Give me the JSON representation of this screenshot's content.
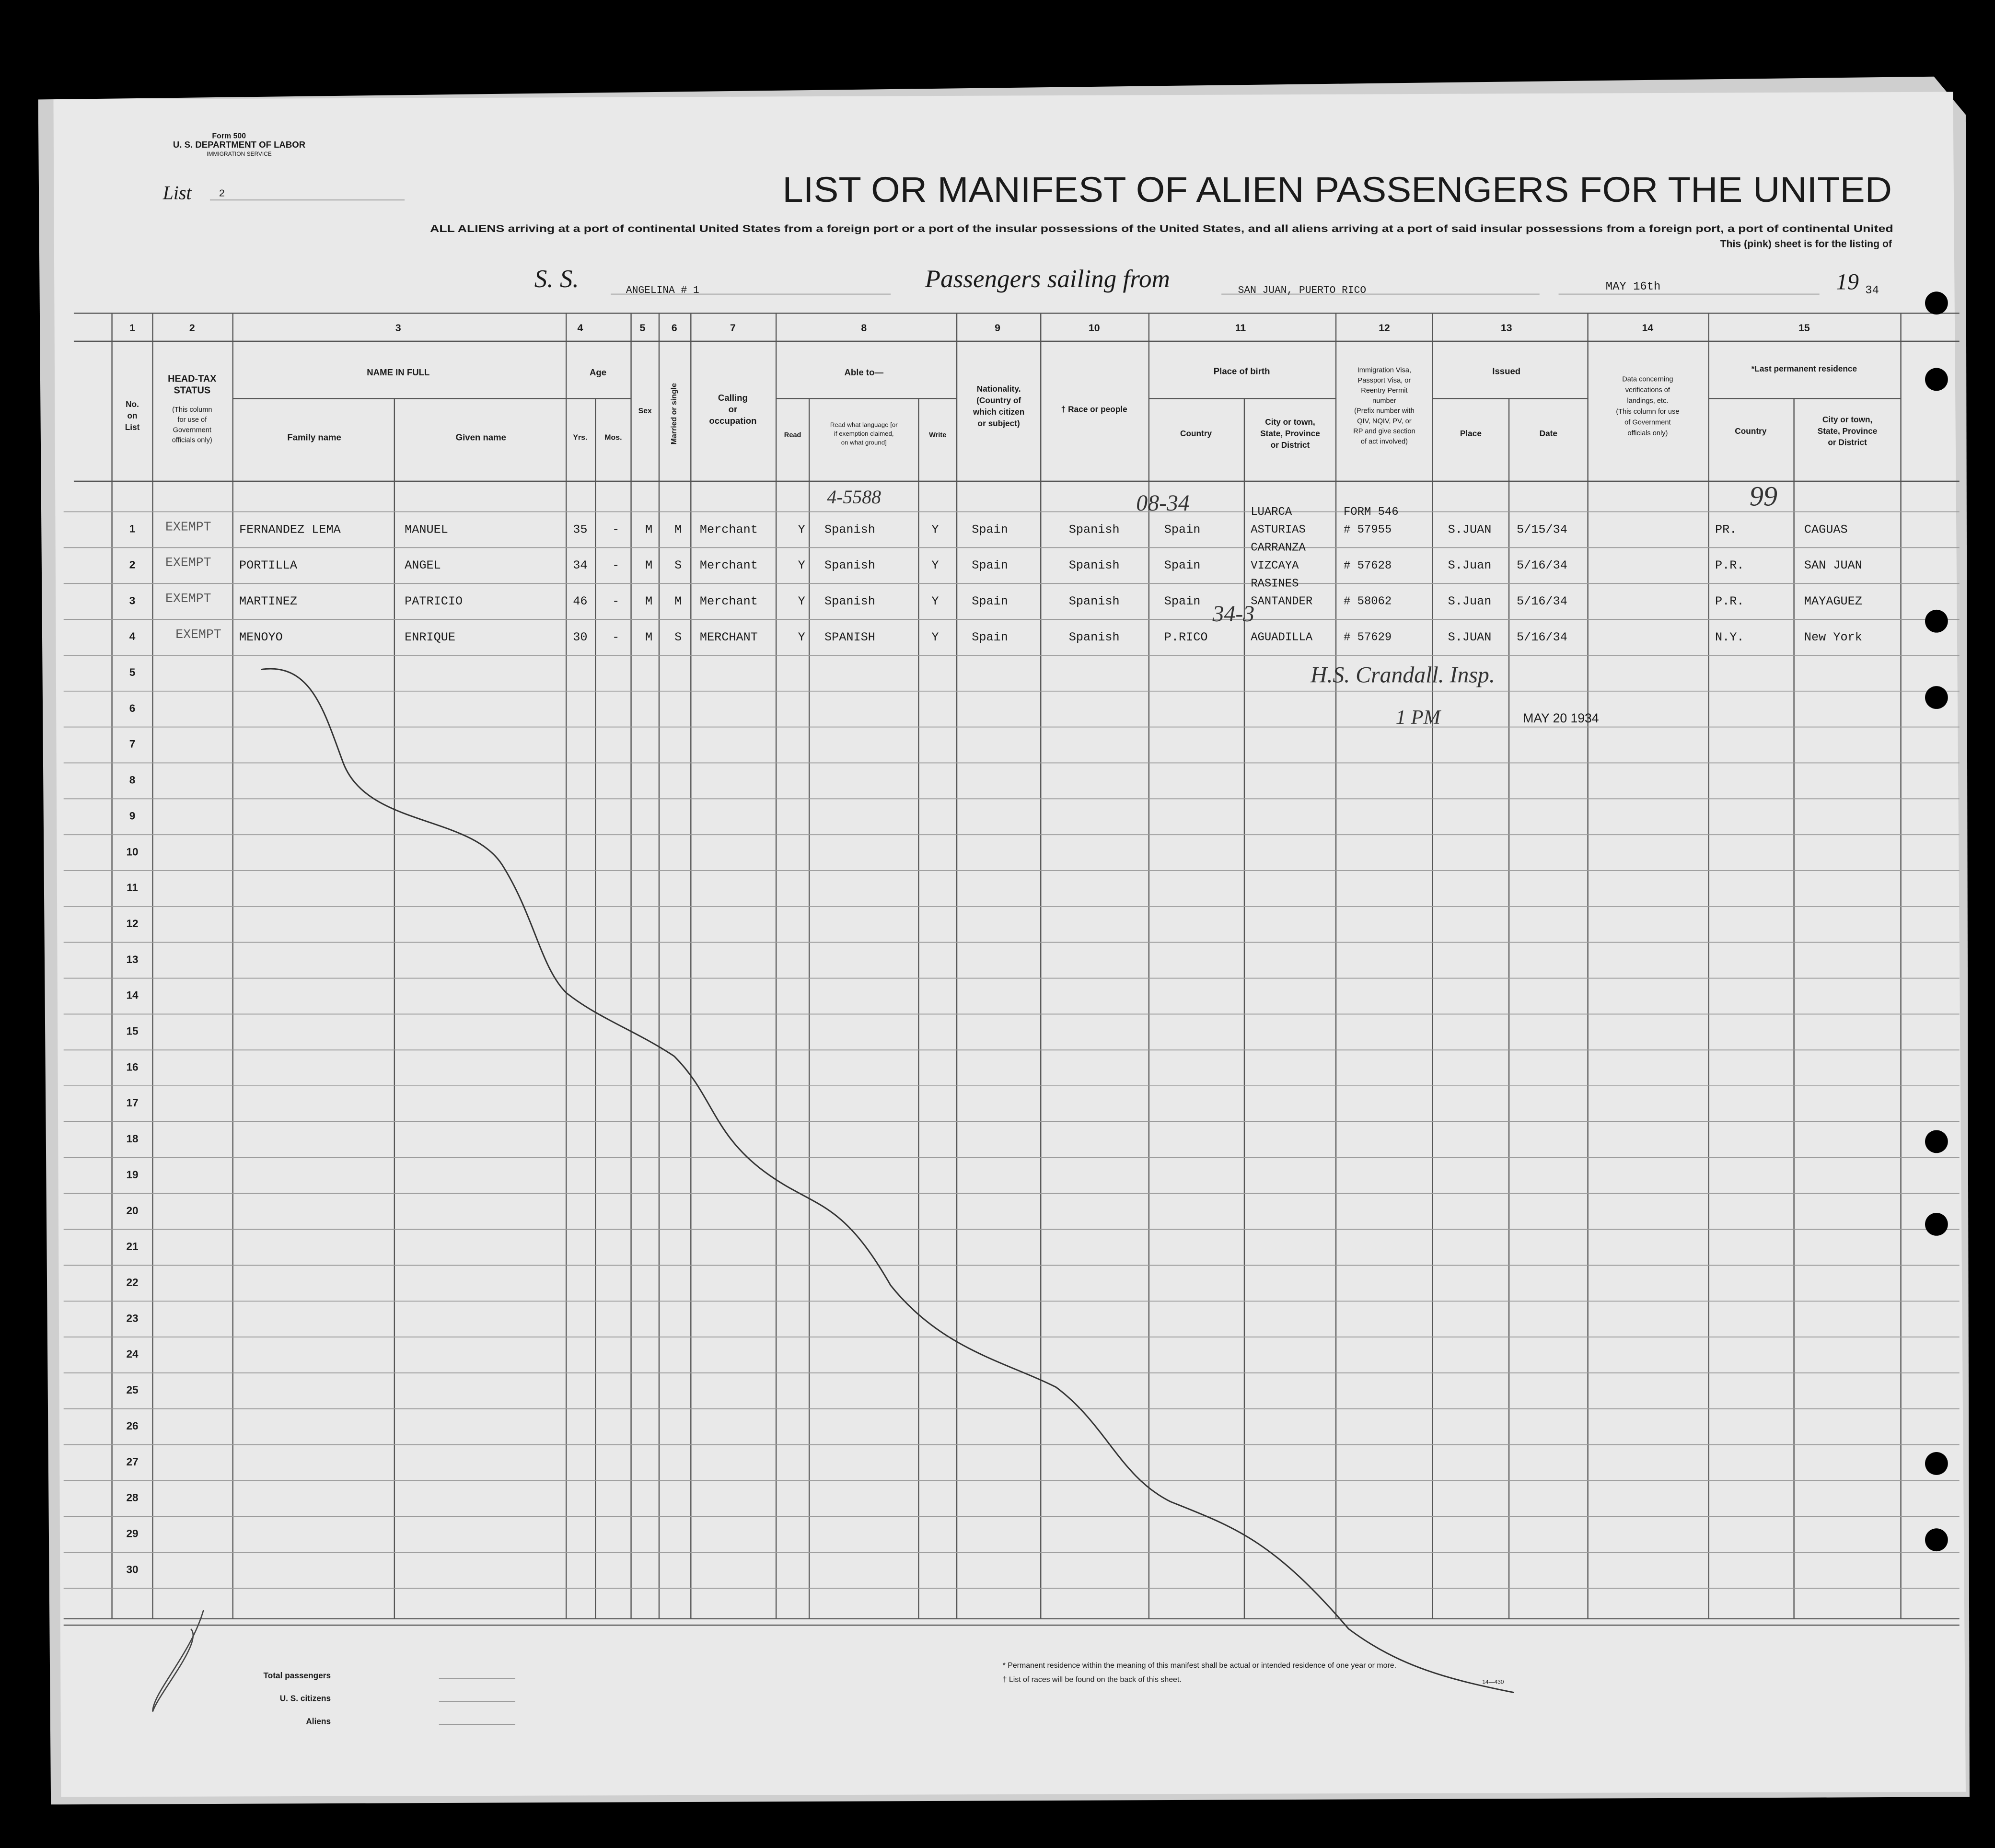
{
  "header": {
    "form": "Form 500",
    "department": "U. S. DEPARTMENT OF LABOR",
    "service": "IMMIGRATION SERVICE",
    "list_label": "List",
    "list_number": "2",
    "title": "LIST OR MANIFEST OF ALIEN PASSENGERS FOR THE UNITED",
    "instructions": [
      "ALL ALIENS arriving at a port of continental United States from a foreign port or a port of the insular possessions of the United States, and all aliens arriving at a port of said insular possessions from a foreign port, a port of continental United",
      "This (pink) sheet is for the listing of"
    ]
  },
  "voyage": {
    "ss_label": "S. S.",
    "ship": "ANGELINA # 1",
    "sailing_label": "Passengers sailing from",
    "port": "SAN JUAN, PUERTO RICO",
    "date": "MAY 16th",
    "year_prefix": "19",
    "year": "34"
  },
  "column_numbers": [
    "1",
    "2",
    "3",
    "4",
    "5",
    "6",
    "7",
    "8",
    "9",
    "10",
    "11",
    "12",
    "13",
    "14",
    "15"
  ],
  "column_headers": {
    "no": [
      "No.",
      "on",
      "List"
    ],
    "head_tax": [
      "HEAD-TAX",
      "STATUS"
    ],
    "head_tax_note": [
      "(This column",
      "for use of",
      "Government",
      "officials only)"
    ],
    "name": "NAME IN FULL",
    "family": "Family name",
    "given": "Given name",
    "age": "Age",
    "yrs": "Yrs.",
    "mos": "Mos.",
    "sex": "Sex",
    "married": "Married or single",
    "calling": [
      "Calling",
      "or",
      "occupation"
    ],
    "able": "Able to—",
    "read": "Read",
    "language": [
      "Read what language [or",
      "if exemption claimed,",
      "on what ground]"
    ],
    "write": "Write",
    "nationality": [
      "Nationality.",
      "(Country of",
      "which citizen",
      "or subject)"
    ],
    "race": "† Race or people",
    "birth": "Place of birth",
    "country": "Country",
    "city": [
      "City or town,",
      "State, Province",
      "or District"
    ],
    "visa": [
      "Immigration Visa,",
      "Passport Visa, or",
      "Reentry Permit",
      "number",
      "(Prefix number with",
      "QIV, NQIV, PV, or",
      "RP and give section",
      "of act involved)"
    ],
    "issued": "Issued",
    "place": "Place",
    "date": "Date",
    "verification": [
      "Data concerning",
      "verifications of",
      "landings, etc.",
      "(This column for use",
      "of Government",
      "officials only)"
    ],
    "residence": "*Last permanent residence",
    "res_country": "Country",
    "res_city": [
      "City or town,",
      "State, Province",
      "or District"
    ]
  },
  "row_numbers": [
    1,
    2,
    3,
    4,
    5,
    6,
    7,
    8,
    9,
    10,
    11,
    12,
    13,
    14,
    15,
    16,
    17,
    18,
    19,
    20,
    21,
    22,
    23,
    24,
    25,
    26,
    27,
    28,
    29,
    30
  ],
  "passengers": [
    {
      "family": "FERNANDEZ LEMA",
      "given": "MANUEL",
      "yrs": "35",
      "mos": "-",
      "sex": "M",
      "married": "M",
      "occupation": "Merchant",
      "read": "Y",
      "language": "Spanish",
      "write": "Y",
      "nationality": "Spain",
      "race": "Spanish",
      "country": "Spain",
      "city": [
        "LUARCA",
        "ASTURIAS"
      ],
      "visa": [
        "FORM 546",
        "# 57955"
      ],
      "place": "S.JUAN",
      "date": "5/15/34",
      "res_country": "PR.",
      "res_city": "CAGUAS"
    },
    {
      "family": "PORTILLA",
      "given": "ANGEL",
      "yrs": "34",
      "mos": "-",
      "sex": "M",
      "married": "S",
      "occupation": "Merchant",
      "read": "Y",
      "language": "Spanish",
      "write": "Y",
      "nationality": "Spain",
      "race": "Spanish",
      "country": "Spain",
      "city": [
        "CARRANZA",
        "VIZCAYA"
      ],
      "visa": [
        "# 57628"
      ],
      "place": "S.Juan",
      "date": "5/16/34",
      "res_country": "P.R.",
      "res_city": "SAN JUAN"
    },
    {
      "family": "MARTINEZ",
      "given": "PATRICIO",
      "yrs": "46",
      "mos": "-",
      "sex": "M",
      "married": "M",
      "occupation": "Merchant",
      "read": "Y",
      "language": "Spanish",
      "write": "Y",
      "nationality": "Spain",
      "race": "Spanish",
      "country": "Spain",
      "city": [
        "RASINES",
        "SANTANDER"
      ],
      "visa": [
        "# 58062"
      ],
      "place": "S.Juan",
      "date": "5/16/34",
      "res_country": "P.R.",
      "res_city": "MAYAGUEZ"
    },
    {
      "family": "MENOYO",
      "given": "ENRIQUE",
      "yrs": "30",
      "mos": "-",
      "sex": "M",
      "married": "S",
      "occupation": "MERCHANT",
      "read": "Y",
      "language": "SPANISH",
      "write": "Y",
      "nationality": "Spain",
      "race": "Spanish",
      "country": "P.RICO",
      "city": [
        "AGUADILLA"
      ],
      "visa": [
        "# 57629"
      ],
      "place": "S.JUAN",
      "date": "5/16/34",
      "res_country": "N.Y.",
      "res_city": "New York"
    }
  ],
  "annotations": {
    "exempt": [
      "EXEMPT",
      "EXEMPT",
      "EXEMPT",
      "EXEMPT"
    ],
    "code_a": "08-34",
    "code_b": "34-3",
    "code_c": "4-5588",
    "code_d": "99",
    "signature": "H.S. Crandall. Insp.",
    "stamp_time": "1 PM",
    "stamp_date": "MAY 20 1934"
  },
  "footer": {
    "totals": [
      "Total passengers",
      "U. S. citizens",
      "Aliens"
    ],
    "notes": [
      "* Permanent residence within the meaning of this manifest shall be actual or intended residence of one year or more.",
      "† List of races will be found on the back of this sheet."
    ],
    "form_code": "14—430"
  }
}
